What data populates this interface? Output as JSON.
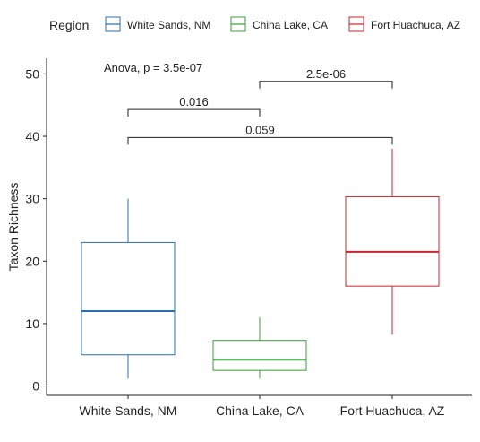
{
  "chart_data": {
    "type": "boxplot",
    "legend": {
      "title": "Region",
      "placement": "top",
      "entries": [
        {
          "label": "White Sands, NM",
          "color": "#2a6fab"
        },
        {
          "label": "China Lake, CA",
          "color": "#3b9c3b"
        },
        {
          "label": "Fort Huachuca, AZ",
          "color": "#c8262c"
        }
      ]
    },
    "xlabel": "",
    "ylabel": "Taxon Richness",
    "ylim": [
      -1.5,
      52.5
    ],
    "yticks": [
      0,
      10,
      20,
      30,
      40,
      50
    ],
    "grid": false,
    "categories": [
      "White Sands, NM",
      "China Lake, CA",
      "Fort Huachuca, AZ"
    ],
    "boxes": [
      {
        "category": "White Sands, NM",
        "min": 1.2,
        "q1": 5.0,
        "median": 12.0,
        "q3": 23.0,
        "max": 30.0,
        "color": "#2a6fab"
      },
      {
        "category": "China Lake, CA",
        "min": 1.2,
        "q1": 2.5,
        "median": 4.2,
        "q3": 7.3,
        "max": 11.0,
        "color": "#3b9c3b"
      },
      {
        "category": "Fort Huachuca, AZ",
        "min": 8.2,
        "q1": 16.0,
        "median": 21.5,
        "q3": 30.3,
        "max": 38.0,
        "color": "#c8262c"
      }
    ],
    "annotation": "Anova, p = 3.5e-07",
    "comparisons": [
      {
        "from": 0,
        "to": 1,
        "y": 44.3,
        "label": "0.016"
      },
      {
        "from": 1,
        "to": 2,
        "y": 48.8,
        "label": "2.5e-06"
      },
      {
        "from": 0,
        "to": 2,
        "y": 39.8,
        "label": "0.059"
      }
    ]
  }
}
